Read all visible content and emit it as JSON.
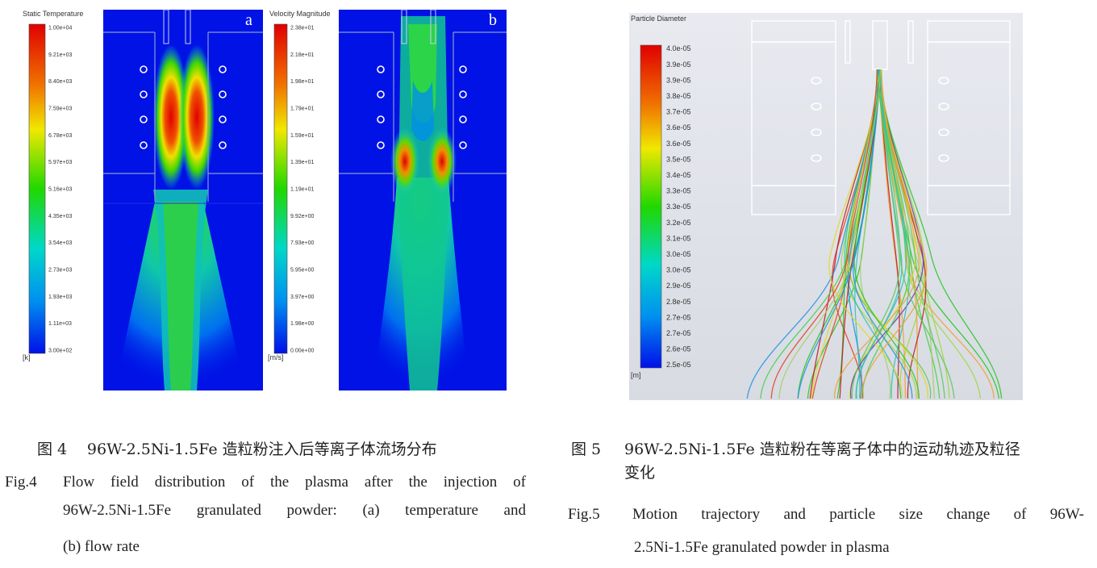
{
  "fig4": {
    "panel_a": {
      "letter": "a",
      "colorbar_title": "Static Temperature",
      "unit": "[k]",
      "ticks": [
        "1.00e+04",
        "9.21e+03",
        "8.40e+03",
        "7.59e+03",
        "6.78e+03",
        "5.97e+03",
        "5.16e+03",
        "4.35e+03",
        "3.54e+03",
        "2.73e+03",
        "1.93e+03",
        "1.11e+03",
        "3.00e+02"
      ]
    },
    "panel_b": {
      "letter": "b",
      "colorbar_title": "Velocity Magnitude",
      "unit": "[m/s]",
      "ticks": [
        "2.38e+01",
        "2.18e+01",
        "1.98e+01",
        "1.79e+01",
        "1.59e+01",
        "1.39e+01",
        "1.19e+01",
        "9.92e+00",
        "7.93e+00",
        "5.95e+00",
        "3.97e+00",
        "1.98e+00",
        "0.00e+00"
      ]
    },
    "caption": {
      "cn_label": "图 4",
      "cn_text": "96W-2.5Ni-1.5Fe 造粒粉注入后等离子体流场分布",
      "en_label": "Fig.4",
      "en_line1": "Flow field distribution of the plasma after the injection of",
      "en_line2": "96W-2.5Ni-1.5Fe granulated powder: (a) temperature and",
      "en_line3": "(b) flow rate"
    }
  },
  "fig5": {
    "colorbar_title": "Particle Diameter",
    "unit": "[m]",
    "ticks": [
      "4.0e-05",
      "3.9e-05",
      "3.9e-05",
      "3.8e-05",
      "3.7e-05",
      "3.6e-05",
      "3.6e-05",
      "3.5e-05",
      "3.4e-05",
      "3.3e-05",
      "3.3e-05",
      "3.2e-05",
      "3.1e-05",
      "3.0e-05",
      "3.0e-05",
      "2.9e-05",
      "2.8e-05",
      "2.7e-05",
      "2.7e-05",
      "2.6e-05",
      "2.5e-05"
    ],
    "caption": {
      "cn_label": "图 5",
      "cn_line1": "96W-2.5Ni-1.5Fe 造粒粉在等离子体中的运动轨迹及粒径",
      "cn_line2": "变化",
      "en_label": "Fig.5",
      "en_line1": "Motion trajectory and particle size change of 96W-",
      "en_line2": "2.5Ni-1.5Fe granulated powder in plasma"
    }
  },
  "colors": {
    "jet_red": "#e00000",
    "jet_yellow": "#f0e800",
    "jet_green": "#00d800",
    "jet_cyan": "#00d0e0",
    "jet_blue": "#0010e8"
  }
}
